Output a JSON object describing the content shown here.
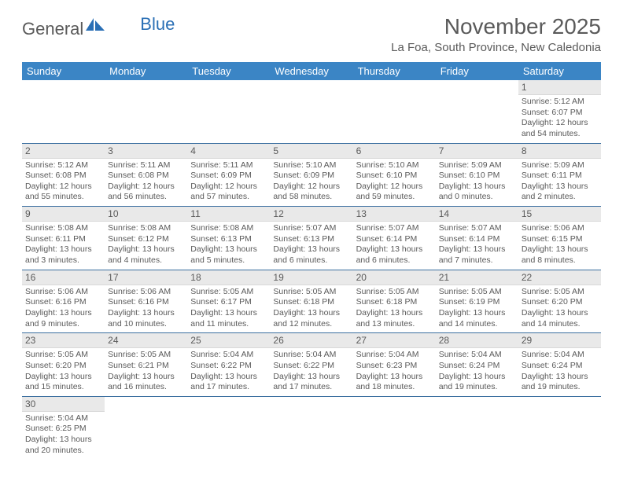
{
  "logo": {
    "word1": "General",
    "word2": "Blue"
  },
  "title": "November 2025",
  "subtitle": "La Foa, South Province, New Caledonia",
  "colors": {
    "header_bg": "#3b85c5",
    "header_text": "#ffffff",
    "daynum_bg": "#e9e9e9",
    "text": "#5a5a5a",
    "row_border": "#3b6fa0",
    "logo_blue": "#2a6fb5"
  },
  "weekdays": [
    "Sunday",
    "Monday",
    "Tuesday",
    "Wednesday",
    "Thursday",
    "Friday",
    "Saturday"
  ],
  "weeks": [
    [
      null,
      null,
      null,
      null,
      null,
      null,
      {
        "n": "1",
        "sr": "5:12 AM",
        "ss": "6:07 PM",
        "dl": "12 hours and 54 minutes."
      }
    ],
    [
      {
        "n": "2",
        "sr": "5:12 AM",
        "ss": "6:08 PM",
        "dl": "12 hours and 55 minutes."
      },
      {
        "n": "3",
        "sr": "5:11 AM",
        "ss": "6:08 PM",
        "dl": "12 hours and 56 minutes."
      },
      {
        "n": "4",
        "sr": "5:11 AM",
        "ss": "6:09 PM",
        "dl": "12 hours and 57 minutes."
      },
      {
        "n": "5",
        "sr": "5:10 AM",
        "ss": "6:09 PM",
        "dl": "12 hours and 58 minutes."
      },
      {
        "n": "6",
        "sr": "5:10 AM",
        "ss": "6:10 PM",
        "dl": "12 hours and 59 minutes."
      },
      {
        "n": "7",
        "sr": "5:09 AM",
        "ss": "6:10 PM",
        "dl": "13 hours and 0 minutes."
      },
      {
        "n": "8",
        "sr": "5:09 AM",
        "ss": "6:11 PM",
        "dl": "13 hours and 2 minutes."
      }
    ],
    [
      {
        "n": "9",
        "sr": "5:08 AM",
        "ss": "6:11 PM",
        "dl": "13 hours and 3 minutes."
      },
      {
        "n": "10",
        "sr": "5:08 AM",
        "ss": "6:12 PM",
        "dl": "13 hours and 4 minutes."
      },
      {
        "n": "11",
        "sr": "5:08 AM",
        "ss": "6:13 PM",
        "dl": "13 hours and 5 minutes."
      },
      {
        "n": "12",
        "sr": "5:07 AM",
        "ss": "6:13 PM",
        "dl": "13 hours and 6 minutes."
      },
      {
        "n": "13",
        "sr": "5:07 AM",
        "ss": "6:14 PM",
        "dl": "13 hours and 6 minutes."
      },
      {
        "n": "14",
        "sr": "5:07 AM",
        "ss": "6:14 PM",
        "dl": "13 hours and 7 minutes."
      },
      {
        "n": "15",
        "sr": "5:06 AM",
        "ss": "6:15 PM",
        "dl": "13 hours and 8 minutes."
      }
    ],
    [
      {
        "n": "16",
        "sr": "5:06 AM",
        "ss": "6:16 PM",
        "dl": "13 hours and 9 minutes."
      },
      {
        "n": "17",
        "sr": "5:06 AM",
        "ss": "6:16 PM",
        "dl": "13 hours and 10 minutes."
      },
      {
        "n": "18",
        "sr": "5:05 AM",
        "ss": "6:17 PM",
        "dl": "13 hours and 11 minutes."
      },
      {
        "n": "19",
        "sr": "5:05 AM",
        "ss": "6:18 PM",
        "dl": "13 hours and 12 minutes."
      },
      {
        "n": "20",
        "sr": "5:05 AM",
        "ss": "6:18 PM",
        "dl": "13 hours and 13 minutes."
      },
      {
        "n": "21",
        "sr": "5:05 AM",
        "ss": "6:19 PM",
        "dl": "13 hours and 14 minutes."
      },
      {
        "n": "22",
        "sr": "5:05 AM",
        "ss": "6:20 PM",
        "dl": "13 hours and 14 minutes."
      }
    ],
    [
      {
        "n": "23",
        "sr": "5:05 AM",
        "ss": "6:20 PM",
        "dl": "13 hours and 15 minutes."
      },
      {
        "n": "24",
        "sr": "5:05 AM",
        "ss": "6:21 PM",
        "dl": "13 hours and 16 minutes."
      },
      {
        "n": "25",
        "sr": "5:04 AM",
        "ss": "6:22 PM",
        "dl": "13 hours and 17 minutes."
      },
      {
        "n": "26",
        "sr": "5:04 AM",
        "ss": "6:22 PM",
        "dl": "13 hours and 17 minutes."
      },
      {
        "n": "27",
        "sr": "5:04 AM",
        "ss": "6:23 PM",
        "dl": "13 hours and 18 minutes."
      },
      {
        "n": "28",
        "sr": "5:04 AM",
        "ss": "6:24 PM",
        "dl": "13 hours and 19 minutes."
      },
      {
        "n": "29",
        "sr": "5:04 AM",
        "ss": "6:24 PM",
        "dl": "13 hours and 19 minutes."
      }
    ],
    [
      {
        "n": "30",
        "sr": "5:04 AM",
        "ss": "6:25 PM",
        "dl": "13 hours and 20 minutes."
      },
      null,
      null,
      null,
      null,
      null,
      null
    ]
  ],
  "labels": {
    "sunrise": "Sunrise: ",
    "sunset": "Sunset: ",
    "daylight": "Daylight: "
  }
}
